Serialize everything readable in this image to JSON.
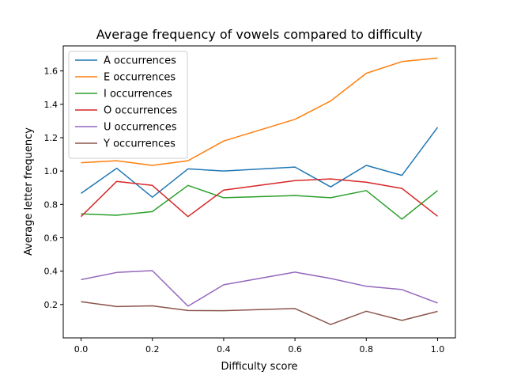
{
  "chart_data": {
    "type": "line",
    "title": "Average frequency of vowels compared to difficulty",
    "xlabel": "Difficulty score",
    "ylabel": "Average letter frequency",
    "xlim": [
      -0.05,
      1.05
    ],
    "ylim": [
      0.0,
      1.75
    ],
    "x_ticks": [
      0.0,
      0.2,
      0.4,
      0.6,
      0.8,
      1.0
    ],
    "x_tick_labels": [
      "0.0",
      "0.2",
      "0.4",
      "0.6",
      "0.8",
      "1.0"
    ],
    "y_ticks": [
      0.2,
      0.4,
      0.6,
      0.8,
      1.0,
      1.2,
      1.4,
      1.6
    ],
    "y_tick_labels": [
      "0.2",
      "0.4",
      "0.6",
      "0.8",
      "1.0",
      "1.2",
      "1.4",
      "1.6"
    ],
    "grid": false,
    "legend_position": "upper-left",
    "x": [
      0.0,
      0.1,
      0.2,
      0.3,
      0.4,
      0.6,
      0.7,
      0.8,
      0.9,
      1.0
    ],
    "series": [
      {
        "name": "A occurrences",
        "color": "#1f77b4",
        "values": [
          0.866,
          1.017,
          0.843,
          1.013,
          1.0,
          1.024,
          0.905,
          1.034,
          0.974,
          1.262
        ]
      },
      {
        "name": "E occurrences",
        "color": "#ff7f0e",
        "values": [
          1.05,
          1.062,
          1.034,
          1.062,
          1.18,
          1.31,
          1.42,
          1.586,
          1.656,
          1.677
        ]
      },
      {
        "name": "I occurrences",
        "color": "#2ca02c",
        "values": [
          0.743,
          0.735,
          0.757,
          0.914,
          0.84,
          0.853,
          0.84,
          0.883,
          0.712,
          0.883
        ]
      },
      {
        "name": "O occurrences",
        "color": "#d62728",
        "values": [
          0.727,
          0.938,
          0.914,
          0.727,
          0.886,
          0.943,
          0.953,
          0.933,
          0.896,
          0.729
        ]
      },
      {
        "name": "U occurrences",
        "color": "#9467bd",
        "values": [
          0.349,
          0.392,
          0.403,
          0.19,
          0.318,
          0.394,
          0.356,
          0.309,
          0.29,
          0.209
        ]
      },
      {
        "name": "Y occurrences",
        "color": "#8c564b",
        "values": [
          0.217,
          0.188,
          0.192,
          0.164,
          0.163,
          0.176,
          0.08,
          0.16,
          0.105,
          0.159
        ]
      }
    ]
  }
}
